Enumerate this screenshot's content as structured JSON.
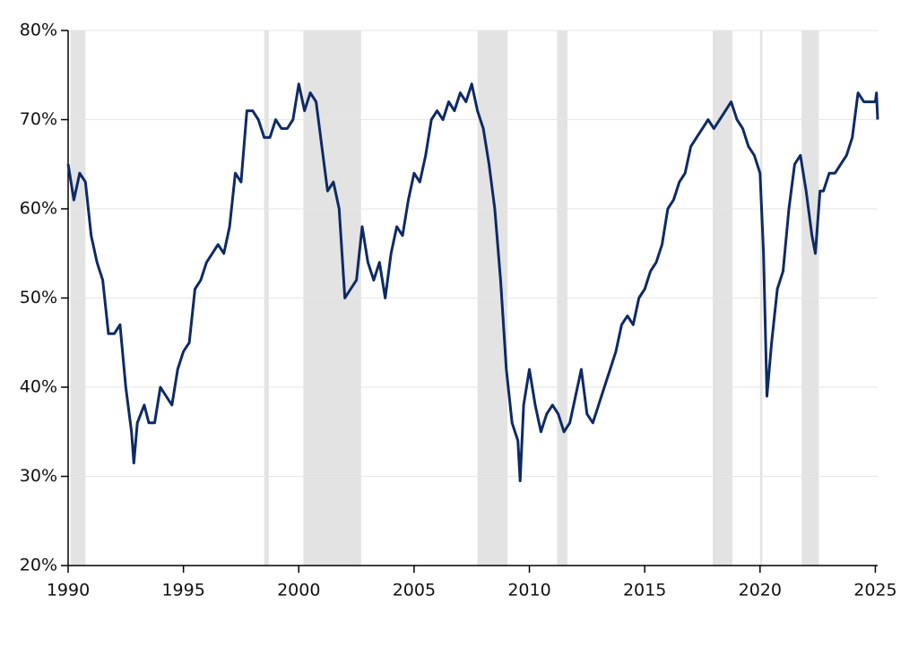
{
  "chart_data": {
    "type": "line",
    "x": [
      1990.0,
      1990.25,
      1990.5,
      1990.75,
      1991.0,
      1991.25,
      1991.5,
      1991.75,
      1992.0,
      1992.25,
      1992.5,
      1992.75,
      1992.85,
      1993.0,
      1993.3,
      1993.5,
      1993.75,
      1994.0,
      1994.25,
      1994.5,
      1994.75,
      1995.0,
      1995.25,
      1995.5,
      1995.75,
      1996.0,
      1996.25,
      1996.5,
      1996.75,
      1997.0,
      1997.25,
      1997.5,
      1997.75,
      1998.0,
      1998.25,
      1998.5,
      1998.75,
      1999.0,
      1999.25,
      1999.5,
      1999.75,
      2000.0,
      2000.25,
      2000.5,
      2000.75,
      2001.0,
      2001.25,
      2001.5,
      2001.75,
      2002.0,
      2002.25,
      2002.5,
      2002.75,
      2003.0,
      2003.25,
      2003.5,
      2003.75,
      2004.0,
      2004.25,
      2004.5,
      2004.75,
      2005.0,
      2005.25,
      2005.5,
      2005.75,
      2006.0,
      2006.25,
      2006.5,
      2006.75,
      2007.0,
      2007.25,
      2007.5,
      2007.75,
      2008.0,
      2008.25,
      2008.5,
      2008.75,
      2009.0,
      2009.25,
      2009.5,
      2009.6,
      2009.75,
      2010.0,
      2010.25,
      2010.5,
      2010.75,
      2011.0,
      2011.25,
      2011.5,
      2011.75,
      2012.0,
      2012.25,
      2012.5,
      2012.75,
      2013.0,
      2013.25,
      2013.5,
      2013.75,
      2014.0,
      2014.25,
      2014.5,
      2014.75,
      2015.0,
      2015.25,
      2015.5,
      2015.75,
      2016.0,
      2016.25,
      2016.5,
      2016.75,
      2017.0,
      2017.25,
      2017.5,
      2017.75,
      2018.0,
      2018.25,
      2018.5,
      2018.75,
      2019.0,
      2019.25,
      2019.5,
      2019.75,
      2020.0,
      2020.15,
      2020.3,
      2020.5,
      2020.75,
      2021.0,
      2021.25,
      2021.5,
      2021.75,
      2022.0,
      2022.25,
      2022.4,
      2022.6,
      2022.75,
      2023.0,
      2023.25,
      2023.5,
      2023.75,
      2024.0,
      2024.25,
      2024.5,
      2024.75,
      2025.0,
      2025.05,
      2025.1
    ],
    "series": [
      {
        "color": "#0e2a66",
        "values": [
          65,
          61,
          64,
          63,
          57,
          54,
          52,
          46,
          46,
          47,
          40,
          35,
          31.5,
          36,
          38,
          36,
          36,
          40,
          39,
          38,
          42,
          44,
          45,
          51,
          52,
          54,
          55,
          56,
          55,
          58,
          64,
          63,
          71,
          71,
          70,
          68,
          68,
          70,
          69,
          69,
          70,
          74,
          71,
          73,
          72,
          67,
          62,
          63,
          60,
          50,
          51,
          52,
          58,
          54,
          52,
          54,
          50,
          55,
          58,
          57,
          61,
          64,
          63,
          66,
          70,
          71,
          70,
          72,
          71,
          73,
          72,
          74,
          71,
          69,
          65,
          60,
          52,
          42,
          36,
          34,
          29.5,
          38,
          42,
          38,
          35,
          37,
          38,
          37,
          35,
          36,
          39,
          42,
          37,
          36,
          38,
          40,
          42,
          44,
          47,
          48,
          47,
          50,
          51,
          53,
          54,
          56,
          60,
          61,
          63,
          64,
          67,
          68,
          69,
          70,
          69,
          70,
          71,
          72,
          70,
          69,
          67,
          66,
          64,
          55,
          39,
          45,
          51,
          53,
          60,
          65,
          66,
          62,
          57,
          55,
          62,
          62,
          64,
          64,
          65,
          66,
          68,
          73,
          72,
          72,
          72,
          73,
          70
        ]
      }
    ],
    "shaded_spans": [
      [
        1990.1,
        1990.75
      ],
      [
        1998.5,
        1998.7
      ],
      [
        2000.2,
        2002.7
      ],
      [
        2007.75,
        2009.05
      ],
      [
        2011.2,
        2011.65
      ],
      [
        2017.95,
        2018.8
      ],
      [
        2020.0,
        2020.1
      ],
      [
        2021.8,
        2022.55
      ]
    ],
    "shade_color": "#e3e3e3",
    "xlim": [
      1990,
      2025.1
    ],
    "xticks": [
      1990,
      1995,
      2000,
      2005,
      2010,
      2015,
      2020,
      2025
    ],
    "ylim": [
      20,
      80
    ],
    "yticks": [
      {
        "value": 20,
        "label": "20%"
      },
      {
        "value": 30,
        "label": "30%"
      },
      {
        "value": 40,
        "label": "40%"
      },
      {
        "value": 50,
        "label": "50%"
      },
      {
        "value": 60,
        "label": "60%"
      },
      {
        "value": 70,
        "label": "70%"
      },
      {
        "value": 80,
        "label": "80%"
      }
    ],
    "grid": true
  }
}
